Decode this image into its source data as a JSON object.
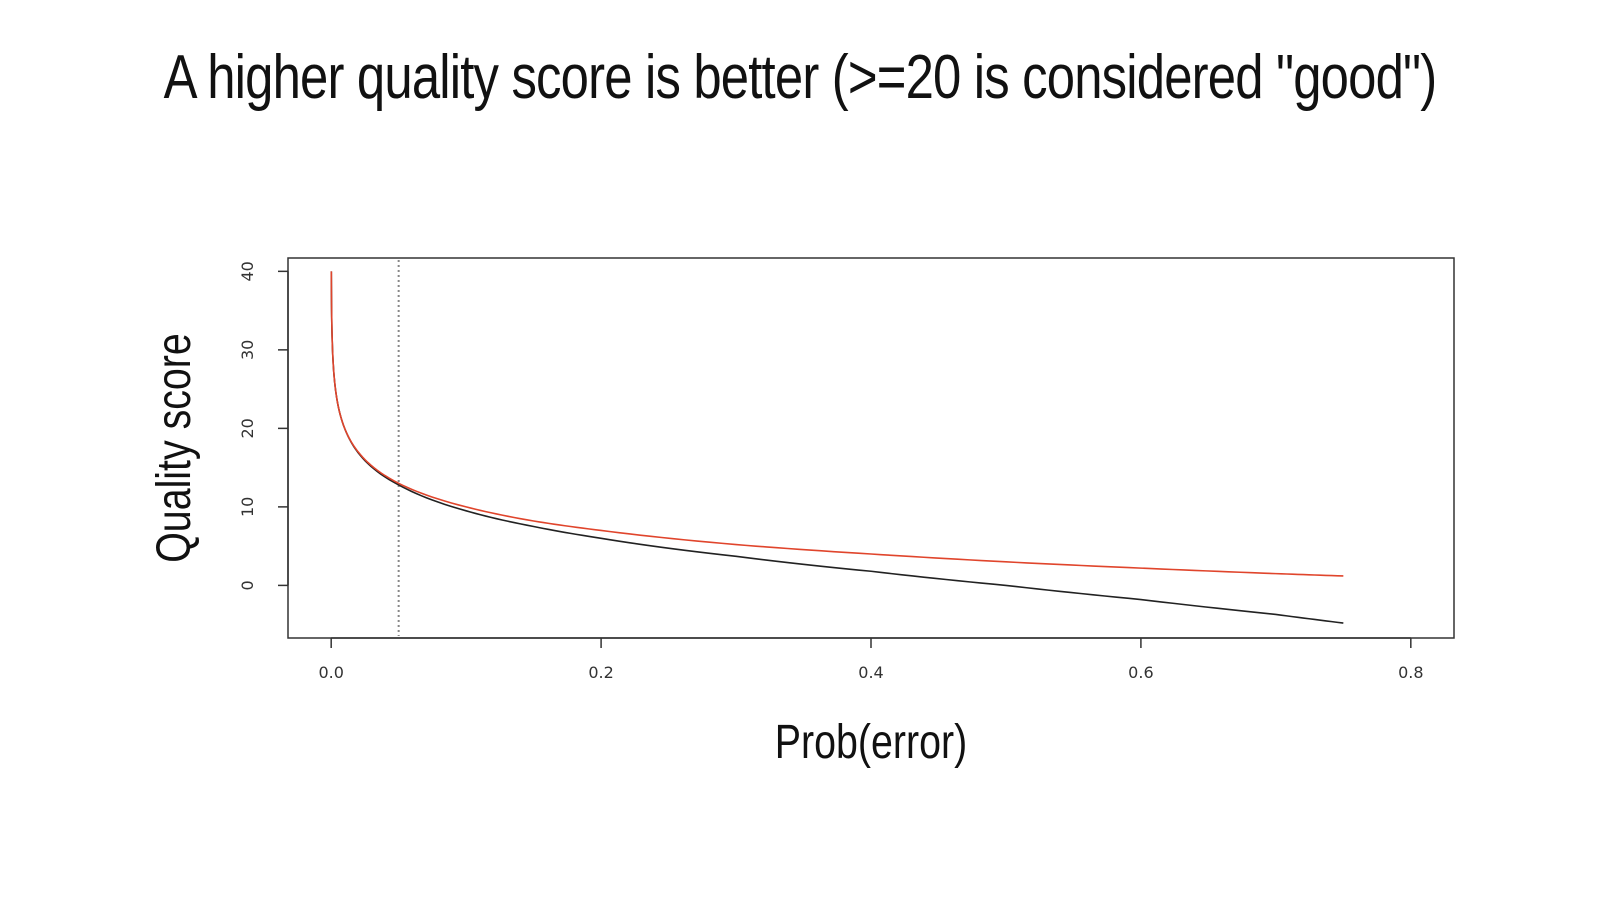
{
  "slide": {
    "title": "A higher quality score is better (>=20 is considered \"good\")"
  },
  "chart_data": {
    "type": "line",
    "title": "",
    "xlabel": "Prob(error)",
    "ylabel": "Quality score",
    "xlim": [
      -0.032,
      0.832
    ],
    "ylim": [
      -6.7,
      41.7
    ],
    "xticks": [
      0.0,
      0.2,
      0.4,
      0.6,
      0.8
    ],
    "xtick_labels": [
      "0.0",
      "0.2",
      "0.4",
      "0.6",
      "0.8"
    ],
    "yticks": [
      0,
      10,
      20,
      30,
      40
    ],
    "ytick_labels": [
      "0",
      "10",
      "20",
      "30",
      "40"
    ],
    "grid": false,
    "legend": "none",
    "x_range": [
      0.0001,
      0.75
    ],
    "reference_line": {
      "x": 0.05,
      "style": "dotted",
      "color": "#888888"
    },
    "series": [
      {
        "color": "#222222",
        "x": [
          0.0001,
          0.001,
          0.005,
          0.01,
          0.02,
          0.05,
          0.1,
          0.15,
          0.2,
          0.3,
          0.4,
          0.5,
          0.6,
          0.7,
          0.75
        ],
        "values": [
          40.0,
          30.0,
          23.0,
          20.0,
          16.9,
          12.8,
          9.5,
          7.5,
          6.0,
          3.7,
          1.8,
          0.0,
          -1.8,
          -3.7,
          -4.8
        ]
      },
      {
        "color": "#e0452c",
        "x": [
          0.0001,
          0.001,
          0.005,
          0.01,
          0.02,
          0.05,
          0.1,
          0.15,
          0.2,
          0.3,
          0.4,
          0.5,
          0.6,
          0.7,
          0.75
        ],
        "values": [
          40.0,
          30.0,
          23.0,
          20.0,
          17.0,
          13.0,
          10.0,
          8.2,
          7.0,
          5.2,
          4.0,
          3.0,
          2.2,
          1.5,
          1.2
        ]
      }
    ]
  }
}
